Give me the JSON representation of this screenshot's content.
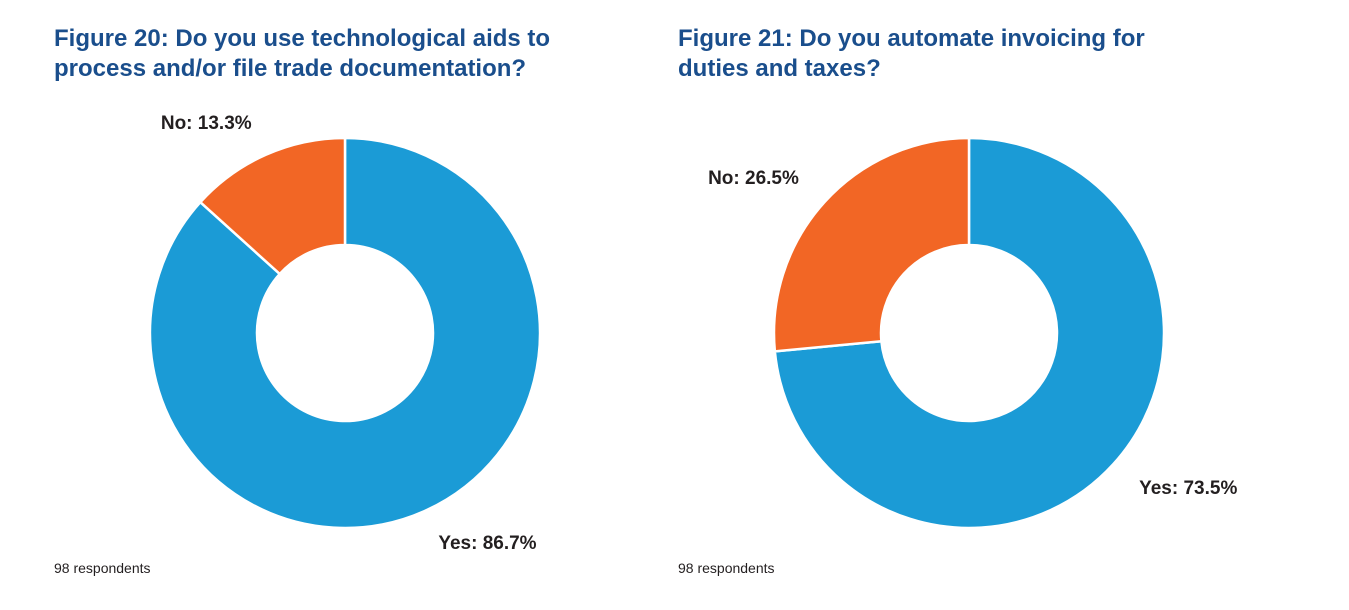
{
  "chart_data": [
    {
      "type": "pie",
      "title": "Figure 20: Do you use technological aids to process and/or file trade documentation?",
      "categories": [
        "Yes",
        "No"
      ],
      "values": [
        86.7,
        13.3
      ],
      "unit": "%",
      "slices": [
        {
          "category": "Yes",
          "value": 86.7,
          "label": "Yes: 86.7%",
          "color": "#1b9bd6"
        },
        {
          "category": "No",
          "value": 13.3,
          "label": "No: 13.3%",
          "color": "#f26625"
        }
      ],
      "style": "donut",
      "start_angle_deg": 0,
      "direction": "clockwise",
      "note": "98 respondents"
    },
    {
      "type": "pie",
      "title": "Figure 21: Do you automate invoicing for duties and taxes?",
      "categories": [
        "Yes",
        "No"
      ],
      "values": [
        73.5,
        26.5
      ],
      "unit": "%",
      "slices": [
        {
          "category": "Yes",
          "value": 73.5,
          "label": "Yes: 73.5%",
          "color": "#1b9bd6"
        },
        {
          "category": "No",
          "value": 26.5,
          "label": "No: 26.5%",
          "color": "#f26625"
        }
      ],
      "style": "donut",
      "start_angle_deg": 0,
      "direction": "clockwise",
      "note": "98 respondents"
    }
  ]
}
